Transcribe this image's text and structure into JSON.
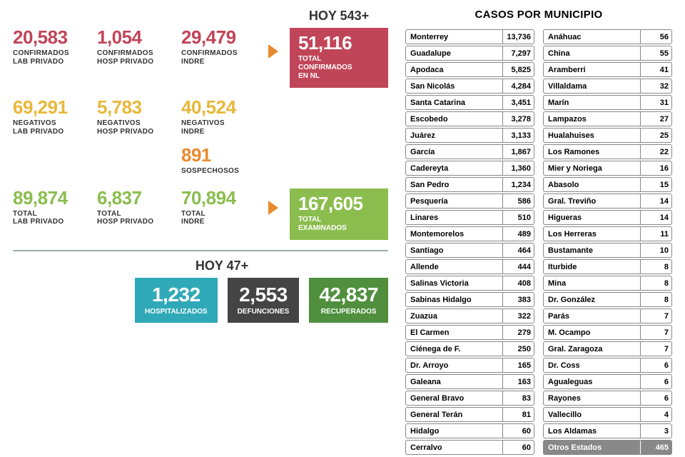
{
  "colors": {
    "red": "#c14558",
    "yellow": "#e8b83a",
    "orange": "#e88b2e",
    "green": "#8bbd4e",
    "darkgreen": "#4f8f3d",
    "darkgray": "#444444",
    "teal": "#2fa9b7"
  },
  "top": {
    "hoy_label": "HOY 543+",
    "confirmados": [
      {
        "value": "20,583",
        "label": "CONFIRMADOS\nLAB PRIVADO"
      },
      {
        "value": "1,054",
        "label": "CONFIRMADOS\nHOSP PRIVADO"
      },
      {
        "value": "29,479",
        "label": "CONFIRMADOS\nINDRE"
      }
    ],
    "total_confirmados": {
      "value": "51,116",
      "label": "TOTAL\nCONFIRMADOS\nEN NL"
    }
  },
  "negativos": [
    {
      "value": "69,291",
      "label": "NEGATIVOS\nLAB PRIVADO"
    },
    {
      "value": "5,783",
      "label": "NEGATIVOS\nHOSP PRIVADO"
    },
    {
      "value": "40,524",
      "label": "NEGATIVOS\nINDRE"
    }
  ],
  "sospechosos": {
    "value": "891",
    "label": "SOSPECHOSOS"
  },
  "totals": {
    "items": [
      {
        "value": "89,874",
        "label": "TOTAL\nLAB PRIVADO"
      },
      {
        "value": "6,837",
        "label": "TOTAL\nHOSP PRIVADO"
      },
      {
        "value": "70,894",
        "label": "TOTAL\nINDRE"
      }
    ],
    "examinados": {
      "value": "167,605",
      "label": "TOTAL\nEXAMINADOS"
    }
  },
  "bottom": {
    "hoy_label": "HOY 47+",
    "items": [
      {
        "value": "1,232",
        "label": "HOSPITALIZADOS",
        "color": "teal"
      },
      {
        "value": "2,553",
        "label": "DEFUNCIONES",
        "color": "darkgray"
      },
      {
        "value": "42,837",
        "label": "RECUPERADOS",
        "color": "darkgreen"
      }
    ]
  },
  "municipios": {
    "title": "CASOS POR MUNICIPIO",
    "col1": [
      {
        "name": "Monterrey",
        "value": "13,736"
      },
      {
        "name": "Guadalupe",
        "value": "7,297"
      },
      {
        "name": "Apodaca",
        "value": "5,825"
      },
      {
        "name": "San Nicolás",
        "value": "4,284"
      },
      {
        "name": "Santa Catarina",
        "value": "3,451"
      },
      {
        "name": "Escobedo",
        "value": "3,278"
      },
      {
        "name": "Juárez",
        "value": "3,133"
      },
      {
        "name": "García",
        "value": "1,867"
      },
      {
        "name": "Cadereyta",
        "value": "1,360"
      },
      {
        "name": "San Pedro",
        "value": "1,234"
      },
      {
        "name": "Pesquería",
        "value": "586"
      },
      {
        "name": "Linares",
        "value": "510"
      },
      {
        "name": "Montemorelos",
        "value": "489"
      },
      {
        "name": "Santiago",
        "value": "464"
      },
      {
        "name": "Allende",
        "value": "444"
      },
      {
        "name": "Salinas Victoria",
        "value": "408"
      },
      {
        "name": "Sabinas Hidalgo",
        "value": "383"
      },
      {
        "name": "Zuazua",
        "value": "322"
      },
      {
        "name": "El Carmen",
        "value": "279"
      },
      {
        "name": "Ciénega de F.",
        "value": "250"
      },
      {
        "name": "Dr. Arroyo",
        "value": "165"
      },
      {
        "name": "Galeana",
        "value": "163"
      },
      {
        "name": "General Bravo",
        "value": "83"
      },
      {
        "name": "General Terán",
        "value": "81"
      },
      {
        "name": "Hidalgo",
        "value": "60"
      },
      {
        "name": "Cerralvo",
        "value": "60"
      }
    ],
    "col2": [
      {
        "name": "Anáhuac",
        "value": "56"
      },
      {
        "name": "China",
        "value": "55"
      },
      {
        "name": "Aramberri",
        "value": "41"
      },
      {
        "name": "Villaldama",
        "value": "32"
      },
      {
        "name": "Marín",
        "value": "31"
      },
      {
        "name": "Lampazos",
        "value": "27"
      },
      {
        "name": "Hualahuises",
        "value": "25"
      },
      {
        "name": "Los Ramones",
        "value": "22"
      },
      {
        "name": "Mier y Noriega",
        "value": "16"
      },
      {
        "name": "Abasolo",
        "value": "15"
      },
      {
        "name": "Gral. Treviño",
        "value": "14"
      },
      {
        "name": "Higueras",
        "value": "14"
      },
      {
        "name": "Los Herreras",
        "value": "11"
      },
      {
        "name": "Bustamante",
        "value": "10"
      },
      {
        "name": "Iturbide",
        "value": "8"
      },
      {
        "name": "Mina",
        "value": "8"
      },
      {
        "name": "Dr. González",
        "value": "8"
      },
      {
        "name": "Parás",
        "value": "7"
      },
      {
        "name": "M. Ocampo",
        "value": "7"
      },
      {
        "name": "Gral. Zaragoza",
        "value": "7"
      },
      {
        "name": "Dr. Coss",
        "value": "6"
      },
      {
        "name": "Agualeguas",
        "value": "6"
      },
      {
        "name": "Rayones",
        "value": "6"
      },
      {
        "name": "Vallecillo",
        "value": "4"
      },
      {
        "name": "Los Aldamas",
        "value": "3"
      },
      {
        "name": "Otros Estados",
        "value": "465",
        "otros": true
      }
    ]
  }
}
